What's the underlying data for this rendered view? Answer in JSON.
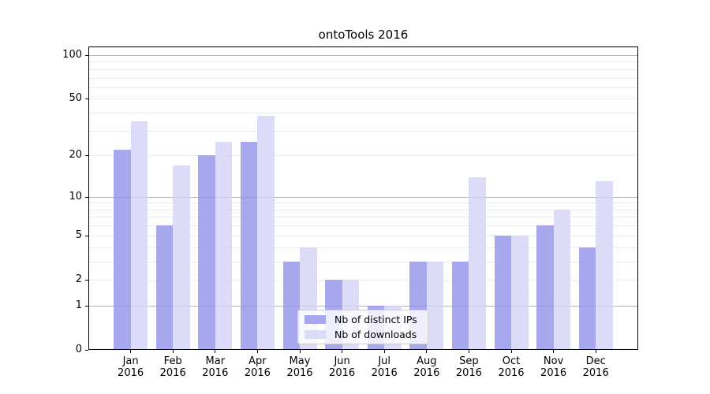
{
  "chart_data": {
    "type": "bar",
    "title": "ontoTools 2016",
    "categories": [
      "Jan\n2016",
      "Feb\n2016",
      "Mar\n2016",
      "Apr\n2016",
      "May\n2016",
      "Jun\n2016",
      "Jul\n2016",
      "Aug\n2016",
      "Sep\n2016",
      "Oct\n2016",
      "Nov\n2016",
      "Dec\n2016"
    ],
    "series": [
      {
        "name": "Nb of distinct IPs",
        "values": [
          22,
          6,
          20,
          25,
          3,
          2,
          1,
          3,
          3,
          5,
          6,
          4
        ],
        "color": "rgba(143,143,235,0.78)"
      },
      {
        "name": "Nb of downloads",
        "values": [
          35,
          17,
          25,
          38,
          4,
          2,
          1,
          3,
          14,
          5,
          8,
          13
        ],
        "color": "rgba(211,211,246,0.8)"
      }
    ],
    "xlabel": "",
    "ylabel": "",
    "yscale": "log(1+y)",
    "yticks": [
      100,
      50,
      20,
      10,
      5,
      2,
      1,
      0
    ],
    "ylim": [
      0,
      115
    ],
    "grid": "horizontal minor gridlines; darker major gridlines at 1, 10, 100",
    "legend_position": "lower center"
  },
  "colors": {
    "bar_distinct_ips": "rgba(143,143,235,0.78)",
    "bar_downloads": "rgba(211,211,246,0.8)",
    "grid_minor": "#ebebeb",
    "grid_major": "#b4b4b4",
    "spine": "#000000",
    "legend_bg": "rgba(255,255,255,0.8)",
    "legend_border": "#cccccc",
    "text": "#000000"
  }
}
